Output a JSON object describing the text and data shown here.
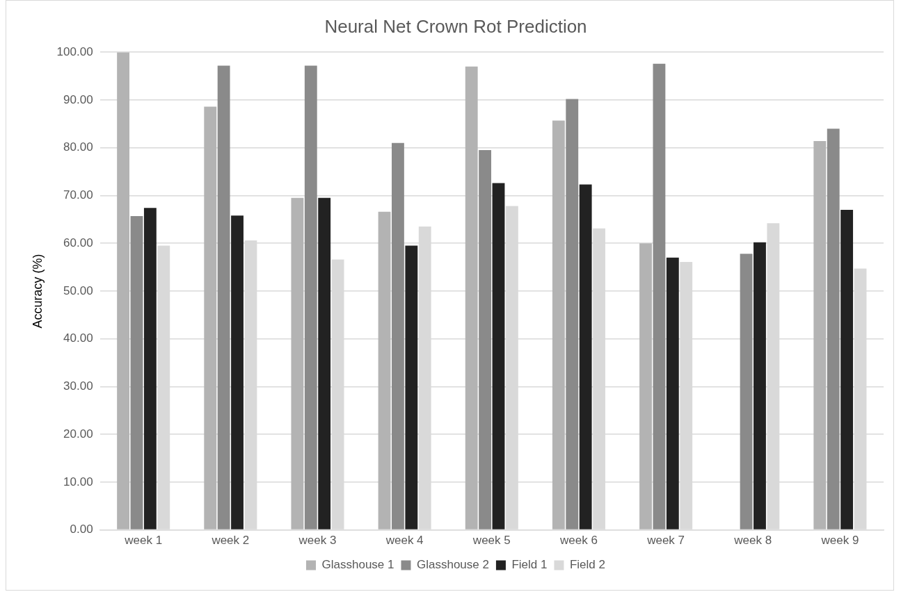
{
  "chart_data": {
    "type": "bar",
    "title": "Neural Net Crown Rot Prediction",
    "ylabel": "Accuracy (%)",
    "categories": [
      "week 1",
      "week 2",
      "week 3",
      "week 4",
      "week 5",
      "week 6",
      "week 7",
      "week 8",
      "week 9"
    ],
    "series": [
      {
        "name": "Glasshouse 1",
        "color": "#b3b3b3",
        "values": [
          100,
          88.6,
          69.5,
          66.6,
          97.0,
          85.7,
          60.0,
          null,
          81.4
        ]
      },
      {
        "name": "Glasshouse 2",
        "color": "#8a8a8a",
        "values": [
          65.7,
          97.2,
          97.2,
          81.0,
          79.5,
          90.2,
          97.6,
          57.8,
          84.0
        ]
      },
      {
        "name": "Field 1",
        "color": "#222222",
        "values": [
          67.4,
          65.8,
          69.5,
          59.5,
          72.6,
          72.3,
          57.0,
          60.2,
          67.0
        ]
      },
      {
        "name": "Field 2",
        "color": "#d9d9d9",
        "values": [
          59.5,
          60.6,
          56.6,
          63.5,
          67.8,
          63.1,
          56.1,
          64.2,
          54.7
        ]
      }
    ],
    "ylim": [
      0,
      100
    ],
    "yticks": [
      {
        "value": 0,
        "label": "0.00"
      },
      {
        "value": 10,
        "label": "10.00"
      },
      {
        "value": 20,
        "label": "20.00"
      },
      {
        "value": 30,
        "label": "30.00"
      },
      {
        "value": 40,
        "label": "40.00"
      },
      {
        "value": 50,
        "label": "50.00"
      },
      {
        "value": 60,
        "label": "60.00"
      },
      {
        "value": 70,
        "label": "70.00"
      },
      {
        "value": 80,
        "label": "80.00"
      },
      {
        "value": 90,
        "label": "90.00"
      },
      {
        "value": 100,
        "label": "100.00"
      }
    ],
    "grid": "y",
    "legend": "bottom"
  }
}
